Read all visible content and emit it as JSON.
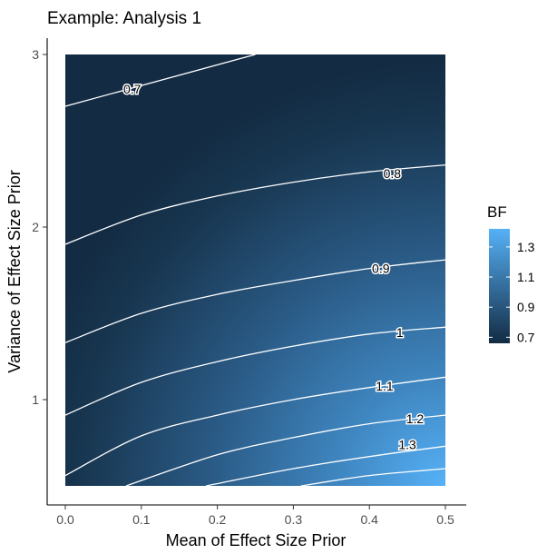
{
  "chart_data": {
    "type": "heatmap",
    "title": "Example: Analysis 1",
    "xlabel": "Mean of Effect Size Prior",
    "ylabel": "Variance of Effect Size Prior",
    "xlim": [
      0.0,
      0.5
    ],
    "ylim": [
      0.5,
      3.0
    ],
    "x_ticks": [
      "0.0",
      "0.1",
      "0.2",
      "0.3",
      "0.4",
      "0.5"
    ],
    "y_ticks": [
      "1",
      "2",
      "3"
    ],
    "grid": false,
    "fill_color_low": "#132B43",
    "fill_color_high": "#56B1F7",
    "legend": {
      "title": "BF",
      "placement": "right",
      "breaks": [
        "1.3",
        "1.1",
        "0.9",
        "0.7"
      ]
    },
    "contours": [
      {
        "level": "0.7",
        "label_at": [
          0.088,
          2.8
        ],
        "points": [
          [
            0.0,
            2.7
          ],
          [
            0.25,
            3.0
          ]
        ]
      },
      {
        "level": "0.8",
        "label_at": [
          0.43,
          2.31
        ],
        "points": [
          [
            0.0,
            1.9
          ],
          [
            0.1,
            2.07
          ],
          [
            0.2,
            2.18
          ],
          [
            0.3,
            2.26
          ],
          [
            0.4,
            2.32
          ],
          [
            0.5,
            2.36
          ]
        ]
      },
      {
        "level": "0.9",
        "label_at": [
          0.415,
          1.76
        ],
        "points": [
          [
            0.0,
            1.33
          ],
          [
            0.1,
            1.5
          ],
          [
            0.2,
            1.61
          ],
          [
            0.3,
            1.69
          ],
          [
            0.4,
            1.76
          ],
          [
            0.5,
            1.81
          ]
        ]
      },
      {
        "level": "1",
        "label_at": [
          0.44,
          1.39
        ],
        "points": [
          [
            0.0,
            0.91
          ],
          [
            0.1,
            1.1
          ],
          [
            0.2,
            1.22
          ],
          [
            0.3,
            1.31
          ],
          [
            0.4,
            1.38
          ],
          [
            0.5,
            1.42
          ]
        ]
      },
      {
        "level": "1.1",
        "label_at": [
          0.42,
          1.08
        ],
        "points": [
          [
            0.0,
            0.56
          ],
          [
            0.1,
            0.79
          ],
          [
            0.2,
            0.91
          ],
          [
            0.3,
            1.0
          ],
          [
            0.4,
            1.07
          ],
          [
            0.5,
            1.13
          ]
        ]
      },
      {
        "level": "1.2",
        "label_at": [
          0.46,
          0.89
        ],
        "points": [
          [
            0.08,
            0.5
          ],
          [
            0.2,
            0.68
          ],
          [
            0.3,
            0.78
          ],
          [
            0.4,
            0.86
          ],
          [
            0.5,
            0.91
          ]
        ]
      },
      {
        "level": "1.3",
        "label_at": [
          0.45,
          0.74
        ],
        "points": [
          [
            0.185,
            0.5
          ],
          [
            0.3,
            0.6
          ],
          [
            0.4,
            0.67
          ],
          [
            0.5,
            0.73
          ]
        ]
      },
      {
        "level": "",
        "label_at": null,
        "points": [
          [
            0.31,
            0.5
          ],
          [
            0.4,
            0.56
          ],
          [
            0.5,
            0.6
          ]
        ]
      }
    ]
  }
}
